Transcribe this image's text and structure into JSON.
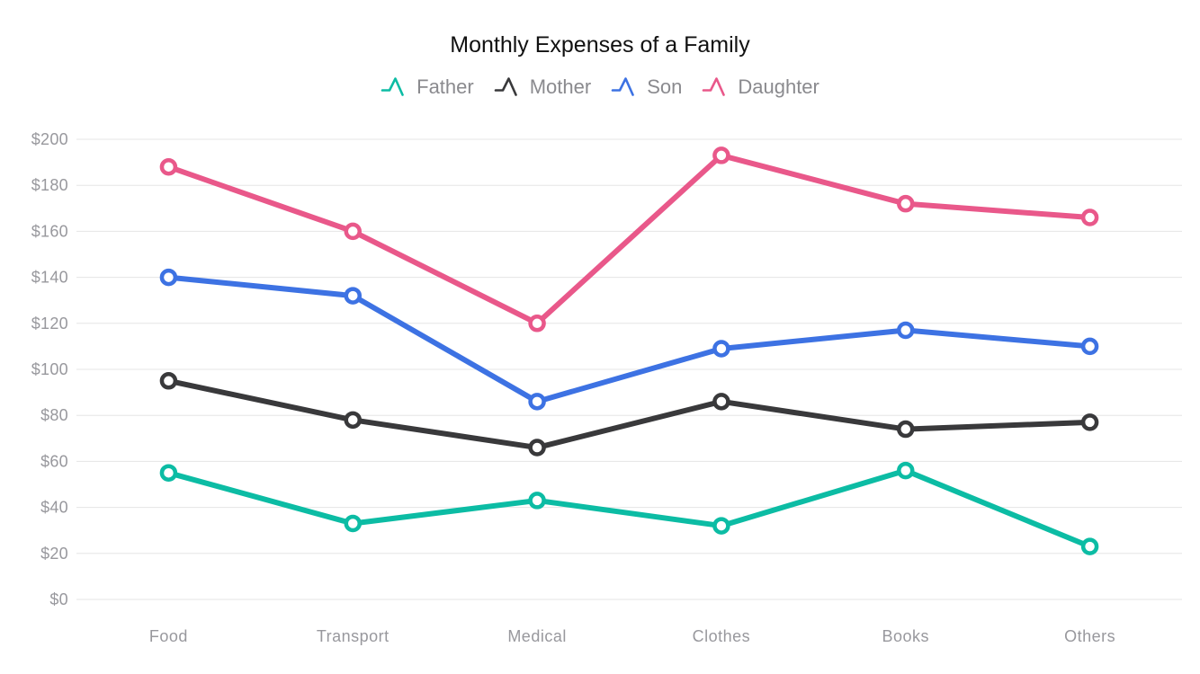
{
  "chart_data": {
    "type": "line",
    "title": "Monthly Expenses of a Family",
    "categories": [
      "Food",
      "Transport",
      "Medical",
      "Clothes",
      "Books",
      "Others"
    ],
    "series": [
      {
        "name": "Father",
        "color": "#0CBCA4",
        "values": [
          55,
          33,
          43,
          32,
          56,
          23
        ]
      },
      {
        "name": "Mother",
        "color": "#39393B",
        "values": [
          95,
          78,
          66,
          86,
          74,
          77
        ]
      },
      {
        "name": "Son",
        "color": "#3D72E3",
        "values": [
          140,
          132,
          86,
          109,
          117,
          110
        ]
      },
      {
        "name": "Daughter",
        "color": "#E9588A",
        "values": [
          188,
          160,
          120,
          193,
          172,
          166
        ]
      }
    ],
    "xlabel": "",
    "ylabel": "",
    "ylim": [
      0,
      200
    ],
    "ytick_step": 20,
    "ytick_prefix": "$",
    "y_tick_labels": [
      "$0",
      "$20",
      "$40",
      "$60",
      "$80",
      "$100",
      "$120",
      "$140",
      "$160",
      "$180",
      "$200"
    ],
    "grid": "horizontal-only",
    "legend_position": "top",
    "colors": {
      "gridline": "#E5E5E5",
      "axis_label": "#98989D",
      "legend_text": "#8A8A8E",
      "title_text": "#111111",
      "marker_fill": "#FFFFFF",
      "background": "#FFFFFF"
    }
  }
}
